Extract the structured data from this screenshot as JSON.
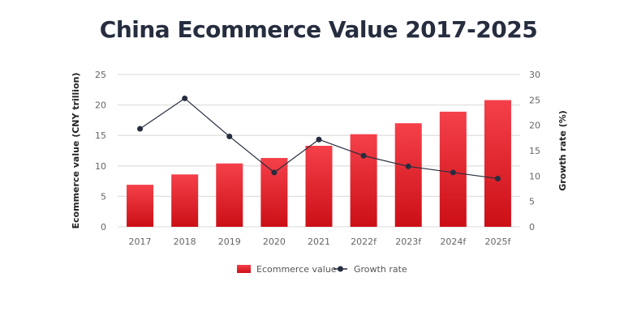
{
  "chart_data": {
    "type": "bar",
    "title": "China Ecommerce Value 2017-2025",
    "categories": [
      "2017",
      "2018",
      "2019",
      "2020",
      "2021",
      "2022f",
      "2023f",
      "2024f",
      "2025f"
    ],
    "series": [
      {
        "name": "Ecommerce value",
        "type": "bar",
        "axis": "left",
        "color": "#e8202a",
        "values": [
          6.9,
          8.6,
          10.4,
          11.3,
          13.3,
          15.2,
          17.0,
          18.9,
          20.8
        ]
      },
      {
        "name": "Growth rate",
        "type": "line",
        "axis": "right",
        "color": "#262d3f",
        "values": [
          19.3,
          25.3,
          17.8,
          10.7,
          17.2,
          14.0,
          11.9,
          10.7,
          9.5
        ]
      }
    ],
    "ylabel": "Ecommerce value (CNY trillion)",
    "y2label": "Growth rate (%)",
    "xlabel": "",
    "ylim": [
      0,
      25
    ],
    "y2lim": [
      0,
      30
    ],
    "yticks": [
      0,
      5,
      10,
      15,
      20,
      25
    ],
    "y2ticks": [
      0,
      5,
      10,
      15,
      20,
      25,
      30
    ],
    "grid": true,
    "legend_position": "bottom"
  },
  "legend": {
    "bar_label": "Ecommerce value",
    "line_label": "Growth rate"
  }
}
